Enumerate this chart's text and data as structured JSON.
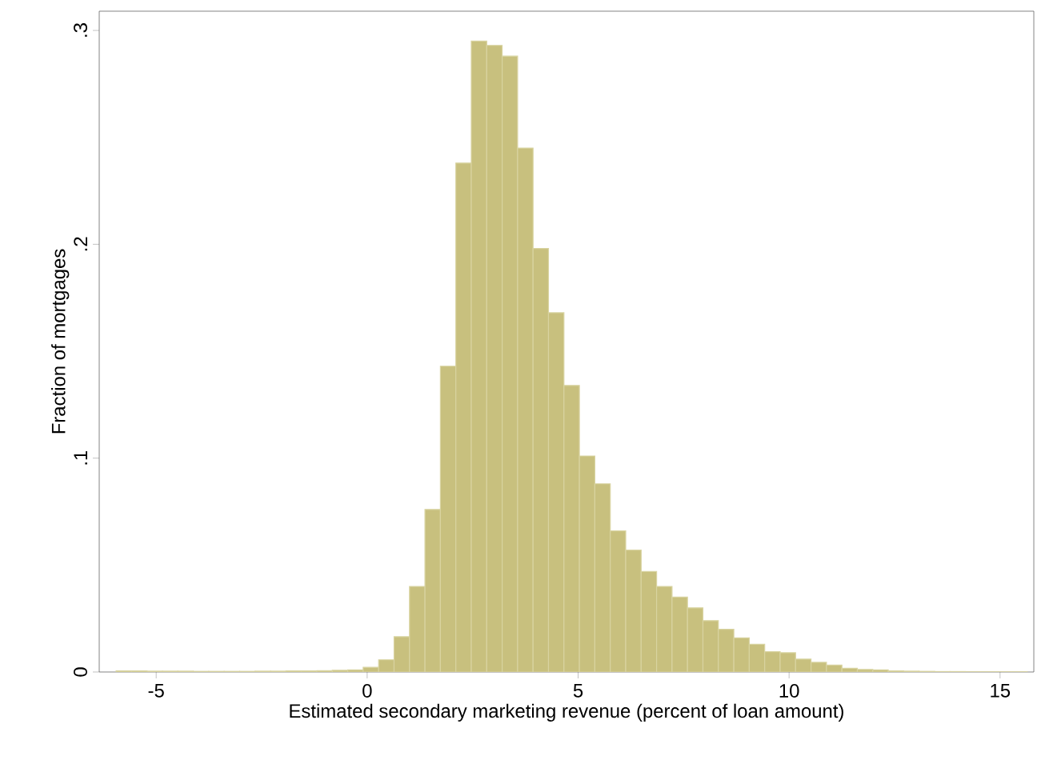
{
  "chart_data": {
    "type": "histogram",
    "xlabel": "Estimated secondary marketing revenue (percent of loan amount)",
    "ylabel": "Fraction of mortgages",
    "bins": [
      -5.95,
      -5.584,
      -5.218,
      -4.852,
      -4.486,
      -4.12,
      -3.754,
      -3.388,
      -3.022,
      -2.656,
      -2.29,
      -1.924,
      -1.558,
      -1.192,
      -0.826,
      -0.46,
      -0.094,
      0.272,
      0.638,
      1.004,
      1.37,
      1.736,
      2.102,
      2.468,
      2.834,
      3.2,
      3.566,
      3.932,
      4.298,
      4.664,
      5.03,
      5.396,
      5.762,
      6.128,
      6.494,
      6.86,
      7.226,
      7.592,
      7.958,
      8.324,
      8.69,
      9.056,
      9.422,
      9.788,
      10.154,
      10.52,
      10.886,
      11.252,
      11.618,
      11.984,
      12.35,
      12.716,
      13.082,
      13.448,
      13.814,
      14.18,
      14.546,
      14.912,
      15.278,
      15.644
    ],
    "values": [
      0.0005,
      0.0005,
      0.0004,
      0.0004,
      0.0004,
      0.0003,
      0.0003,
      0.0003,
      0.0003,
      0.0004,
      0.0004,
      0.0005,
      0.0005,
      0.0006,
      0.0008,
      0.001,
      0.0022,
      0.0057,
      0.0165,
      0.04,
      0.076,
      0.143,
      0.238,
      0.295,
      0.293,
      0.288,
      0.245,
      0.198,
      0.168,
      0.134,
      0.101,
      0.088,
      0.066,
      0.057,
      0.047,
      0.04,
      0.035,
      0.03,
      0.024,
      0.02,
      0.016,
      0.013,
      0.0095,
      0.009,
      0.006,
      0.0045,
      0.0032,
      0.0017,
      0.0012,
      0.001,
      0.0005,
      0.0004,
      0.0003,
      0.0002,
      0.0002,
      0.0001,
      0.0001,
      0.0001,
      0.0001
    ],
    "color": "#c8c07e",
    "xlim": [
      -6.35,
      15.8
    ],
    "ylim": [
      0,
      0.309
    ],
    "xticks": [
      -5,
      0,
      5,
      10,
      15
    ],
    "yticks": [
      0,
      {
        "value": 0.1,
        "label": ".1"
      },
      {
        "value": 0.2,
        "label": ".2"
      },
      {
        "value": 0.3,
        "label": ".3"
      }
    ],
    "grid": false
  }
}
